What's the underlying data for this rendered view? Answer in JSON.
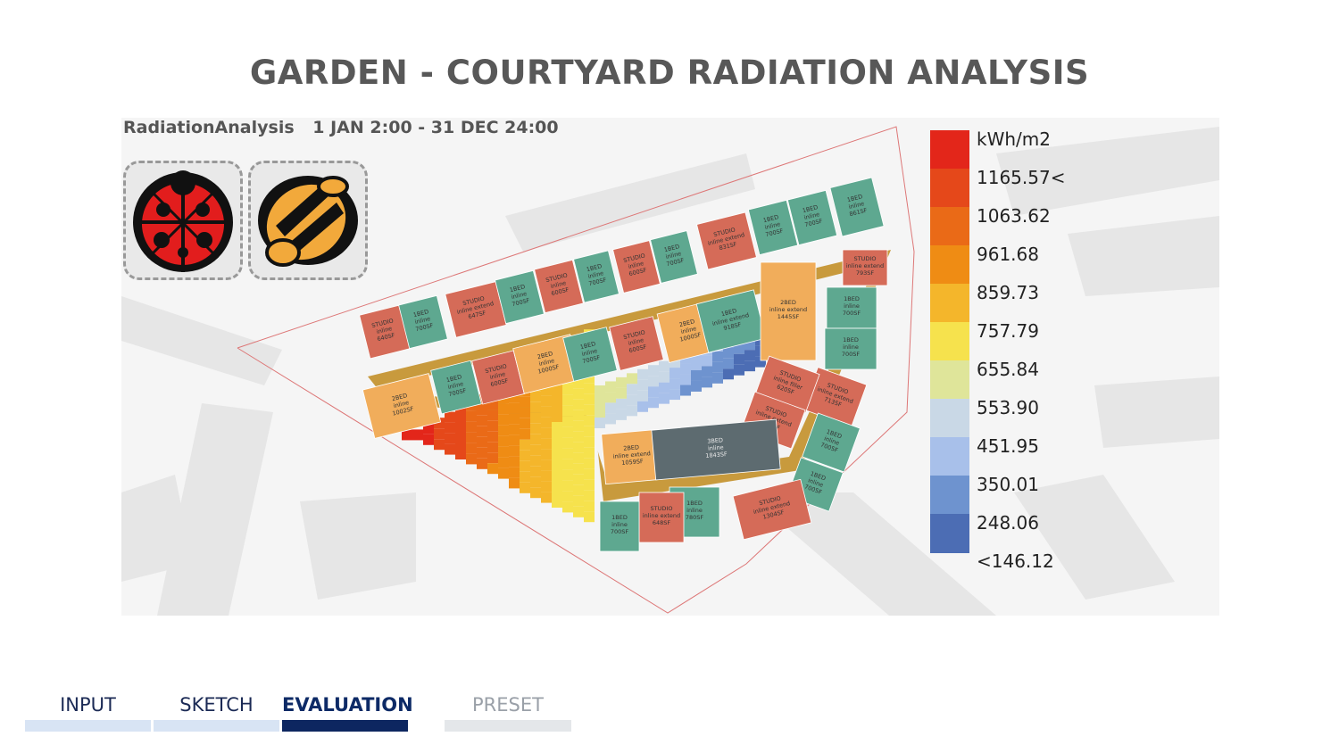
{
  "page": {
    "title": "GARDEN - COURTYARD RADIATION ANALYSIS",
    "subtitle_component": "RadiationAnalysis",
    "subtitle_period": "1 JAN 2:00 - 31 DEC 24:00"
  },
  "legend": {
    "unit": "kWh/m2",
    "entries": [
      {
        "label": "1165.57<",
        "color": "#e5481a"
      },
      {
        "label": "1063.62",
        "color": "#ea6a17"
      },
      {
        "label": "961.68",
        "color": "#ef8c14"
      },
      {
        "label": "859.73",
        "color": "#f4b62b"
      },
      {
        "label": "757.79",
        "color": "#f6e24d"
      },
      {
        "label": "655.84",
        "color": "#dfe59a"
      },
      {
        "label": "553.90",
        "color": "#c9d8e6"
      },
      {
        "label": "451.95",
        "color": "#a8c0ea"
      },
      {
        "label": "350.01",
        "color": "#6e93cf"
      },
      {
        "label": "248.06",
        "color": "#4c6db4"
      },
      {
        "label": "<146.12",
        "color": ""
      }
    ],
    "top_color": "#e3261a"
  },
  "logos": [
    "ladybug-icon",
    "honeybee-icon"
  ],
  "units": [
    {
      "type": "STUDIO",
      "kind": "inline",
      "area": "640SF",
      "color": "#d56b58"
    },
    {
      "type": "1BED",
      "kind": "inline",
      "area": "700SF",
      "color": "#5ea890"
    },
    {
      "type": "STUDIO",
      "kind": "inline extend",
      "area": "647SF",
      "color": "#d56b58"
    },
    {
      "type": "1BED",
      "kind": "inline",
      "area": "700SF",
      "color": "#5ea890"
    },
    {
      "type": "STUDIO",
      "kind": "inline",
      "area": "600SF",
      "color": "#d56b58"
    },
    {
      "type": "1BED",
      "kind": "inline",
      "area": "700SF",
      "color": "#5ea890"
    },
    {
      "type": "STUDIO",
      "kind": "inline",
      "area": "600SF",
      "color": "#d56b58"
    },
    {
      "type": "1BED",
      "kind": "inline",
      "area": "700SF",
      "color": "#5ea890"
    },
    {
      "type": "STUDIO",
      "kind": "inline extend",
      "area": "831SF",
      "color": "#d56b58"
    },
    {
      "type": "1BED",
      "kind": "inline",
      "area": "700SF",
      "color": "#5ea890"
    },
    {
      "type": "1BED",
      "kind": "inline",
      "area": "700SF",
      "color": "#5ea890"
    },
    {
      "type": "1BED",
      "kind": "inline",
      "area": "861SF",
      "color": "#5ea890"
    },
    {
      "type": "STUDIO",
      "kind": "inline extend",
      "area": "793SF",
      "color": "#d56b58"
    },
    {
      "type": "1BED",
      "kind": "inline",
      "area": "700SF",
      "color": "#5ea890"
    },
    {
      "type": "1BED",
      "kind": "inline",
      "area": "700SF",
      "color": "#5ea890"
    },
    {
      "type": "STUDIO",
      "kind": "inline extend",
      "area": "713SF",
      "color": "#d56b58"
    },
    {
      "type": "1BED",
      "kind": "inline",
      "area": "700SF",
      "color": "#5ea890"
    },
    {
      "type": "1BED",
      "kind": "inline",
      "area": "700SF",
      "color": "#5ea890"
    },
    {
      "type": "STUDIO",
      "kind": "inline extend",
      "area": "1304SF",
      "color": "#d56b58"
    },
    {
      "type": "1BED",
      "kind": "inline",
      "area": "780SF",
      "color": "#5ea890"
    },
    {
      "type": "STUDIO",
      "kind": "inline extend",
      "area": "648SF",
      "color": "#d56b58"
    },
    {
      "type": "1BED",
      "kind": "inline",
      "area": "700SF",
      "color": "#5ea890"
    },
    {
      "type": "2BED",
      "kind": "inline",
      "area": "1002SF",
      "color": "#f1ad5b"
    },
    {
      "type": "1BED",
      "kind": "inline",
      "area": "700SF",
      "color": "#5ea890"
    },
    {
      "type": "STUDIO",
      "kind": "inline",
      "area": "600SF",
      "color": "#d56b58"
    },
    {
      "type": "2BED",
      "kind": "inline",
      "area": "1000SF",
      "color": "#f1ad5b"
    },
    {
      "type": "1BED",
      "kind": "inline",
      "area": "700SF",
      "color": "#5ea890"
    },
    {
      "type": "STUDIO",
      "kind": "inline",
      "area": "600SF",
      "color": "#d56b58"
    },
    {
      "type": "2BED",
      "kind": "inline",
      "area": "1000SF",
      "color": "#f1ad5b"
    },
    {
      "type": "1BED",
      "kind": "inline extend",
      "area": "918SF",
      "color": "#5ea890"
    },
    {
      "type": "2BED",
      "kind": "inline extend",
      "area": "1445SF",
      "color": "#f1ad5b"
    },
    {
      "type": "STUDIO",
      "kind": "inline filler",
      "area": "620SF",
      "color": "#d56b58"
    },
    {
      "type": "STUDIO",
      "kind": "inline extend",
      "area": "671SF",
      "color": "#d56b58"
    },
    {
      "type": "2BED",
      "kind": "inline extend",
      "area": "1059SF",
      "color": "#f1ad5b"
    },
    {
      "type": "3BED",
      "kind": "inline",
      "area": "1843SF",
      "color": "#5d6b70"
    }
  ],
  "tabs": [
    {
      "label": "INPUT",
      "state": "normal"
    },
    {
      "label": "SKETCH",
      "state": "normal"
    },
    {
      "label": "EVALUATION",
      "state": "active"
    },
    {
      "label": "PRESET",
      "state": "muted"
    }
  ]
}
